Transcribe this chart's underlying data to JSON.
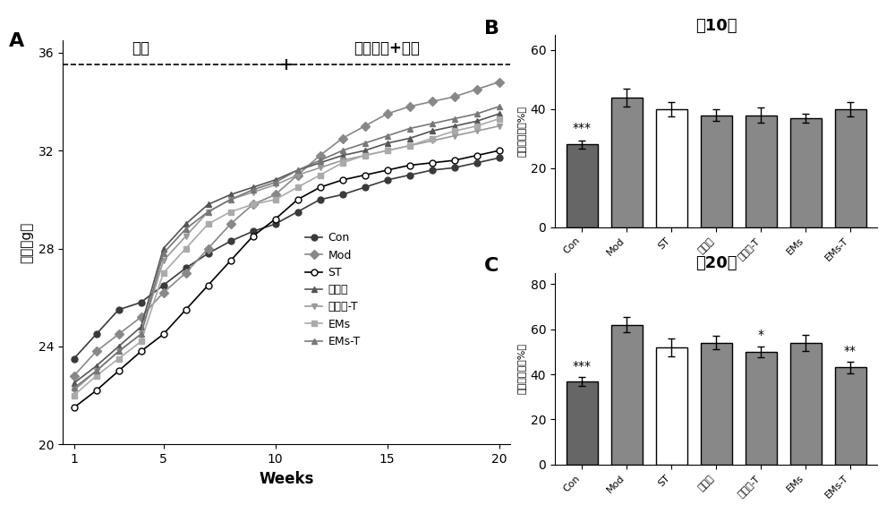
{
  "line_weeks": [
    1,
    2,
    3,
    4,
    5,
    6,
    7,
    8,
    9,
    10,
    11,
    12,
    13,
    14,
    15,
    16,
    17,
    18,
    19,
    20
  ],
  "line_series": {
    "Con": [
      23.5,
      24.5,
      25.5,
      25.8,
      26.5,
      27.2,
      27.8,
      28.3,
      28.7,
      29.0,
      29.5,
      30.0,
      30.2,
      30.5,
      30.8,
      31.0,
      31.2,
      31.3,
      31.5,
      31.7
    ],
    "Mod": [
      22.8,
      23.8,
      24.5,
      25.2,
      26.2,
      27.0,
      28.0,
      29.0,
      29.8,
      30.2,
      31.0,
      31.8,
      32.5,
      33.0,
      33.5,
      33.8,
      34.0,
      34.2,
      34.5,
      34.8
    ],
    "ST": [
      21.5,
      22.2,
      23.0,
      23.8,
      24.5,
      25.5,
      26.5,
      27.5,
      28.5,
      29.2,
      30.0,
      30.5,
      30.8,
      31.0,
      31.2,
      31.4,
      31.5,
      31.6,
      31.8,
      32.0
    ],
    "胆汁体": [
      22.5,
      23.2,
      24.0,
      24.8,
      28.0,
      29.0,
      29.8,
      30.2,
      30.5,
      30.8,
      31.2,
      31.5,
      31.8,
      32.0,
      32.3,
      32.5,
      32.8,
      33.0,
      33.2,
      33.5
    ],
    "胆汁体-T": [
      22.2,
      23.0,
      23.8,
      24.5,
      27.5,
      28.5,
      29.5,
      30.0,
      30.3,
      30.6,
      31.0,
      31.3,
      31.6,
      31.8,
      32.0,
      32.2,
      32.4,
      32.6,
      32.8,
      33.0
    ],
    "EMs": [
      22.0,
      22.8,
      23.5,
      24.2,
      27.0,
      28.0,
      29.0,
      29.5,
      29.8,
      30.0,
      30.5,
      31.0,
      31.5,
      31.8,
      32.0,
      32.2,
      32.5,
      32.8,
      33.0,
      33.3
    ],
    "EMs-T": [
      22.3,
      23.0,
      23.8,
      24.5,
      27.8,
      28.8,
      29.5,
      30.0,
      30.4,
      30.7,
      31.2,
      31.6,
      32.0,
      32.3,
      32.6,
      32.9,
      33.1,
      33.3,
      33.5,
      33.8
    ]
  },
  "line_colors": {
    "Con": "#3d3d3d",
    "Mod": "#888888",
    "ST": "#000000",
    "胆汁体": "#5a5a5a",
    "胆汁体-T": "#999999",
    "EMs": "#aaaaaa",
    "EMs-T": "#777777"
  },
  "line_markers": {
    "Con": "o",
    "Mod": "D",
    "ST": "o",
    "胆汁体": "^",
    "胆汁体-T": "v",
    "EMs": "s",
    "EMs-T": "^"
  },
  "line_filled": {
    "Con": true,
    "Mod": true,
    "ST": false,
    "胆汁体": true,
    "胆汁体-T": true,
    "EMs": true,
    "EMs-T": true
  },
  "bar_categories": [
    "Con",
    "Mod",
    "ST",
    "胆汁体",
    "胆汁体-T",
    "EMs",
    "EMs-T"
  ],
  "bar_B_values": [
    28,
    44,
    40,
    38,
    38,
    37,
    40
  ],
  "bar_B_errors": [
    1.5,
    3.0,
    2.5,
    2.0,
    2.5,
    1.5,
    2.5
  ],
  "bar_C_values": [
    37,
    62,
    52,
    54,
    50,
    54,
    43
  ],
  "bar_C_errors": [
    2.0,
    3.5,
    4.0,
    3.0,
    2.5,
    3.5,
    2.5
  ],
  "bar_colors_filled": [
    "#666666",
    "#888888",
    "#ffffff",
    "#888888",
    "#888888",
    "#888888",
    "#888888"
  ],
  "bar_edge_color": "#000000",
  "panel_B_ylim": [
    0,
    65
  ],
  "panel_B_yticks": [
    0,
    20,
    40,
    60
  ],
  "panel_C_ylim": [
    0,
    85
  ],
  "panel_C_yticks": [
    0,
    20,
    40,
    60,
    80
  ],
  "panel_B_sig": {
    "Con": "***"
  },
  "panel_C_sig": {
    "Con": "***",
    "胆汁体-T": "*",
    "EMs-T": "**"
  },
  "dashed_line_y": 35.5,
  "phase_split_week": 10,
  "label_zaomo": "造模",
  "label_nutrition": "营养干预+造模",
  "ylabel_line": "体重（g）",
  "xlabel_line": "Weeks",
  "ylabel_bar": "体重增量率（%）",
  "title_B": "第10周",
  "title_C": "第20周"
}
